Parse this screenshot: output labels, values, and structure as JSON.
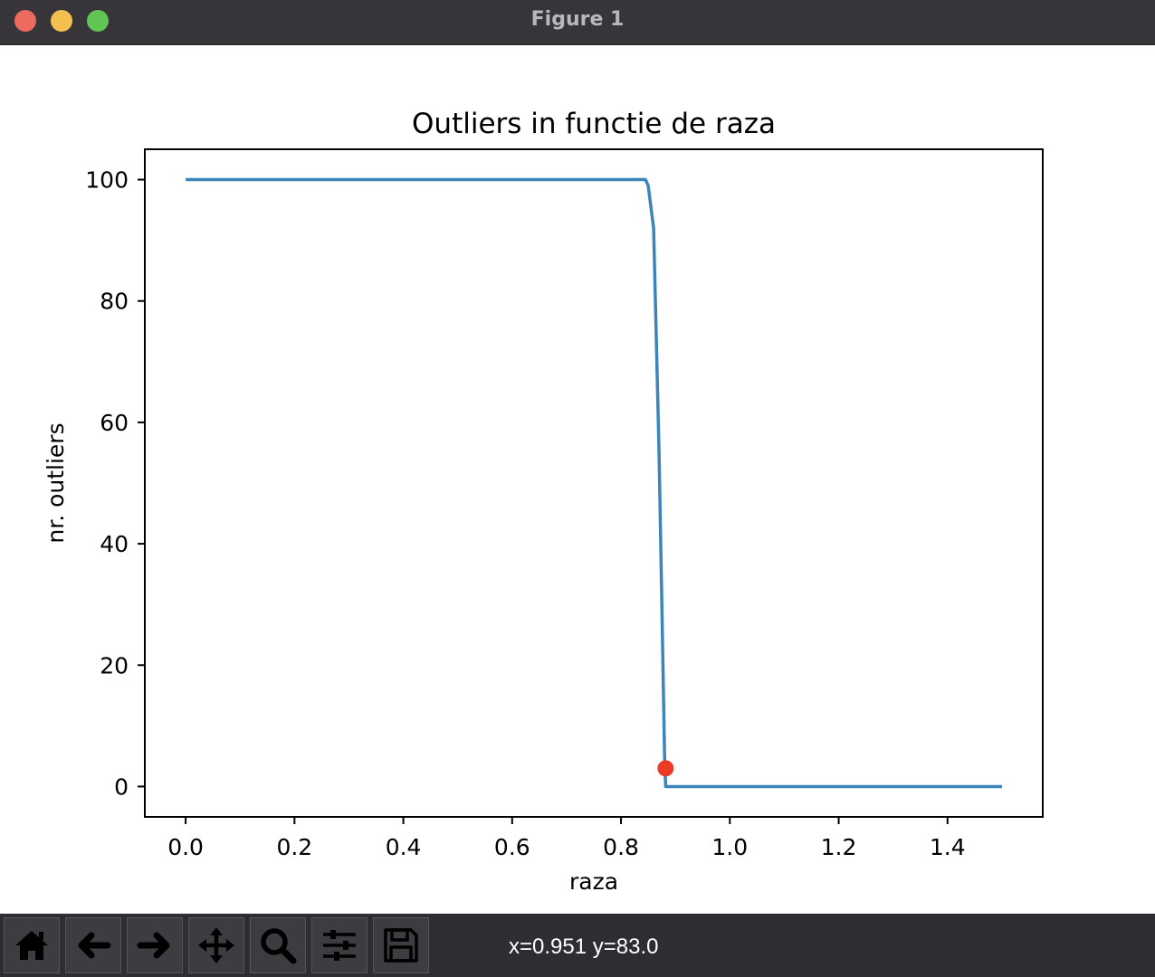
{
  "window": {
    "title": "Figure 1"
  },
  "chart_data": {
    "type": "line",
    "title": "Outliers in functie de raza",
    "xlabel": "raza",
    "ylabel": "nr. outliers",
    "xlim": [
      -0.075,
      1.575
    ],
    "ylim": [
      -5,
      105
    ],
    "xticks": [
      0.0,
      0.2,
      0.4,
      0.6,
      0.8,
      1.0,
      1.2,
      1.4
    ],
    "xtick_labels": [
      "0.0",
      "0.2",
      "0.4",
      "0.6",
      "0.8",
      "1.0",
      "1.2",
      "1.4"
    ],
    "yticks": [
      0,
      20,
      40,
      60,
      80,
      100
    ],
    "ytick_labels": [
      "0",
      "20",
      "40",
      "60",
      "80",
      "100"
    ],
    "grid": false,
    "series": [
      {
        "color": "#3c85bb",
        "x": [
          0.0,
          0.2,
          0.4,
          0.6,
          0.8,
          0.845,
          0.85,
          0.86,
          0.87,
          0.875,
          0.88,
          0.882,
          1.0,
          1.2,
          1.5
        ],
        "y": [
          100,
          100,
          100,
          100,
          100,
          100,
          99,
          92,
          55,
          30,
          5,
          0,
          0,
          0,
          0
        ]
      }
    ],
    "highlight_point": {
      "x": 0.882,
      "y": 3,
      "color": "#ea3c25"
    }
  },
  "toolbar": {
    "buttons": [
      {
        "name": "home-button",
        "icon": "home-icon"
      },
      {
        "name": "back-button",
        "icon": "arrow-left-icon"
      },
      {
        "name": "forward-button",
        "icon": "arrow-right-icon"
      },
      {
        "name": "pan-button",
        "icon": "move-icon"
      },
      {
        "name": "zoom-button",
        "icon": "magnifier-icon"
      },
      {
        "name": "configure-subplots-button",
        "icon": "sliders-icon"
      },
      {
        "name": "save-button",
        "icon": "floppy-disk-icon"
      }
    ],
    "coordinates": "x=0.951 y=83.0"
  }
}
